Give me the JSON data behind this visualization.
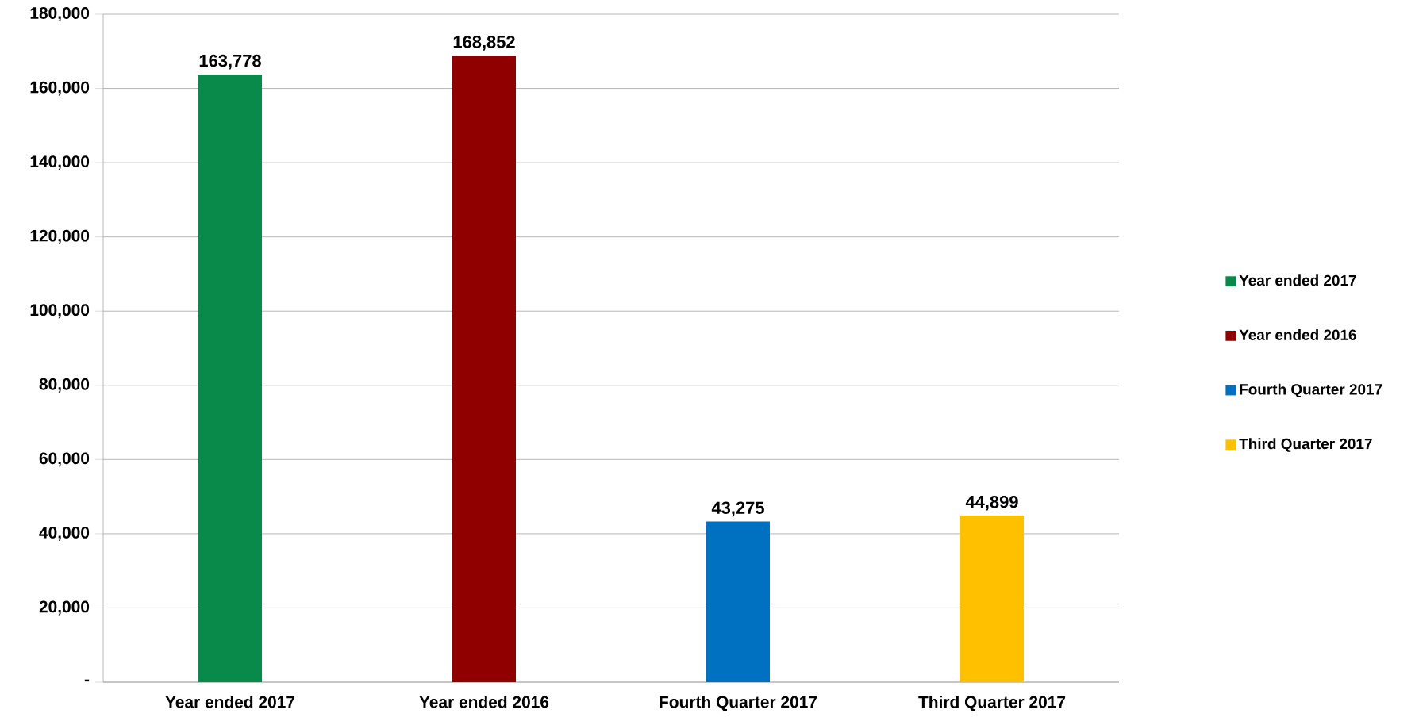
{
  "chart_data": {
    "type": "bar",
    "categories": [
      "Year ended 2017",
      "Year ended 2016",
      "Fourth Quarter 2017",
      "Third Quarter 2017"
    ],
    "series": [
      {
        "name": "Year ended 2017",
        "color": "#0a8a4a",
        "values": [
          163778,
          null,
          null,
          null
        ],
        "value_labels": [
          "163,778",
          null,
          null,
          null
        ]
      },
      {
        "name": "Year ended 2016",
        "color": "#900000",
        "values": [
          null,
          168852,
          null,
          null
        ],
        "value_labels": [
          null,
          "168,852",
          null,
          null
        ]
      },
      {
        "name": "Fourth Quarter 2017",
        "color": "#0070c0",
        "values": [
          null,
          null,
          43275,
          null
        ],
        "value_labels": [
          null,
          null,
          "43,275",
          null
        ]
      },
      {
        "name": "Third Quarter 2017",
        "color": "#ffc000",
        "values": [
          null,
          null,
          null,
          44899
        ],
        "value_labels": [
          null,
          null,
          null,
          "44,899"
        ]
      }
    ],
    "ylim": [
      0,
      180000
    ],
    "yticks": [
      {
        "value": 0,
        "label": "-"
      },
      {
        "value": 20000,
        "label": "20,000"
      },
      {
        "value": 40000,
        "label": "40,000"
      },
      {
        "value": 60000,
        "label": "60,000"
      },
      {
        "value": 80000,
        "label": "80,000"
      },
      {
        "value": 100000,
        "label": "100,000"
      },
      {
        "value": 120000,
        "label": "120,000"
      },
      {
        "value": 140000,
        "label": "140,000"
      },
      {
        "value": 160000,
        "label": "160,000"
      },
      {
        "value": 180000,
        "label": "180,000"
      }
    ],
    "grid": "y",
    "legend": "right"
  }
}
